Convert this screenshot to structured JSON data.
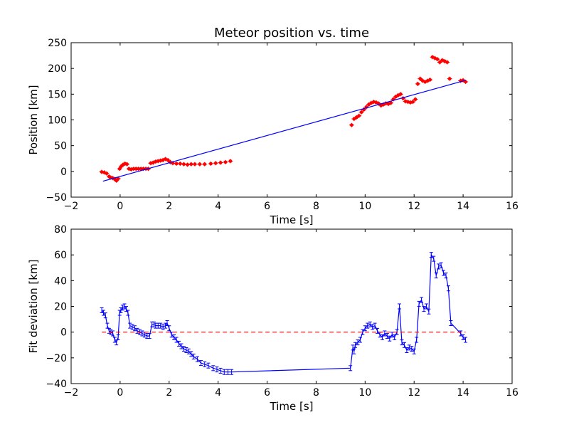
{
  "chart_data": [
    {
      "type": "scatter",
      "title": "Meteor position vs. time",
      "xlabel": "Time [s]",
      "ylabel": "Position [km]",
      "xlim": [
        -2,
        16
      ],
      "ylim": [
        -50,
        250
      ],
      "xticks": [
        "−2",
        "0",
        "2",
        "4",
        "6",
        "8",
        "10",
        "12",
        "14",
        "16"
      ],
      "yticks": [
        "−50",
        "0",
        "50",
        "100",
        "150",
        "200",
        "250"
      ],
      "grid": false,
      "series": [
        {
          "kind": "markers",
          "color": "#ff0000",
          "x": [
            -0.75,
            -0.65,
            -0.55,
            -0.45,
            -0.38,
            -0.3,
            -0.22,
            -0.15,
            -0.08,
            -0.02,
            0.05,
            0.12,
            0.2,
            0.28,
            0.36,
            0.45,
            0.55,
            0.65,
            0.75,
            0.85,
            0.95,
            1.05,
            1.15,
            1.25,
            1.35,
            1.45,
            1.55,
            1.65,
            1.75,
            1.85,
            1.95,
            2.05,
            2.15,
            2.3,
            2.45,
            2.6,
            2.75,
            2.9,
            3.05,
            3.25,
            3.45,
            3.7,
            3.9,
            4.1,
            4.3,
            4.5,
            9.45,
            9.55,
            9.65,
            9.75,
            9.85,
            9.95,
            10.05,
            10.15,
            10.25,
            10.35,
            10.45,
            10.55,
            10.65,
            10.75,
            10.85,
            10.95,
            11.05,
            11.15,
            11.25,
            11.35,
            11.45,
            11.55,
            11.65,
            11.75,
            11.85,
            11.95,
            12.05,
            12.15,
            12.25,
            12.35,
            12.45,
            12.55,
            12.65,
            12.75,
            12.85,
            12.95,
            13.05,
            13.15,
            13.25,
            13.35,
            13.45,
            13.9,
            14.0,
            14.1
          ],
          "y": [
            -1,
            -2,
            -4,
            -10,
            -12,
            -13,
            -15,
            -18,
            -14,
            5,
            10,
            13,
            15,
            14,
            5,
            4,
            5,
            5,
            5,
            5,
            5,
            5,
            5,
            16,
            17,
            19,
            20,
            21,
            22,
            24,
            22,
            18,
            16,
            15,
            15,
            14,
            13,
            14,
            14,
            14,
            14,
            15,
            16,
            17,
            18,
            20,
            90,
            102,
            105,
            108,
            115,
            120,
            125,
            130,
            133,
            135,
            134,
            132,
            128,
            130,
            132,
            131,
            133,
            140,
            145,
            148,
            150,
            142,
            136,
            135,
            134,
            135,
            140,
            170,
            180,
            176,
            174,
            176,
            178,
            222,
            220,
            218,
            212,
            216,
            214,
            212,
            180,
            176,
            177,
            174
          ]
        },
        {
          "kind": "line",
          "color": "#0000ff",
          "x": [
            -0.7,
            14.1
          ],
          "y": [
            -19,
            177
          ]
        }
      ]
    },
    {
      "type": "line",
      "title": "",
      "xlabel": "Time [s]",
      "ylabel": "Fit deviation [km]",
      "xlim": [
        -2,
        16
      ],
      "ylim": [
        -40,
        80
      ],
      "xticks": [
        "−2",
        "0",
        "2",
        "4",
        "6",
        "8",
        "10",
        "12",
        "14",
        "16"
      ],
      "yticks": [
        "−40",
        "−20",
        "0",
        "20",
        "40",
        "60",
        "80"
      ],
      "grid": false,
      "series": [
        {
          "kind": "errorline",
          "color": "#0000ff",
          "x": [
            -0.75,
            -0.68,
            -0.6,
            -0.52,
            -0.45,
            -0.38,
            -0.3,
            -0.22,
            -0.15,
            -0.08,
            -0.02,
            0.03,
            0.1,
            0.18,
            0.25,
            0.32,
            0.4,
            0.5,
            0.6,
            0.7,
            0.8,
            0.9,
            1.0,
            1.1,
            1.2,
            1.3,
            1.38,
            1.45,
            1.55,
            1.65,
            1.75,
            1.85,
            1.92,
            2.0,
            2.1,
            2.2,
            2.3,
            2.4,
            2.5,
            2.6,
            2.7,
            2.8,
            2.9,
            3.0,
            3.15,
            3.3,
            3.45,
            3.6,
            3.8,
            3.95,
            4.1,
            4.25,
            4.4,
            4.55,
            9.4,
            9.5,
            9.55,
            9.6,
            9.7,
            9.8,
            9.9,
            10.0,
            10.1,
            10.2,
            10.3,
            10.4,
            10.5,
            10.6,
            10.7,
            10.8,
            10.9,
            11.0,
            11.1,
            11.2,
            11.3,
            11.4,
            11.5,
            11.6,
            11.7,
            11.8,
            11.9,
            12.0,
            12.1,
            12.2,
            12.3,
            12.4,
            12.5,
            12.6,
            12.7,
            12.8,
            12.9,
            13.0,
            13.1,
            13.2,
            13.3,
            13.4,
            13.5,
            13.9,
            14.0,
            14.1
          ],
          "y": [
            17,
            15,
            13,
            5,
            1,
            0,
            -1,
            -6,
            -8,
            -4,
            15,
            17,
            19,
            20,
            18,
            15,
            5,
            4,
            3,
            1,
            0,
            -1,
            -2,
            -3,
            -3,
            6,
            6,
            5,
            5,
            5,
            4,
            5,
            7,
            3,
            -2,
            -4,
            -6,
            -9,
            -11,
            -13,
            -14,
            -15,
            -17,
            -19,
            -21,
            -24,
            -25,
            -26,
            -28,
            -29,
            -30,
            -31,
            -31,
            -31,
            -28,
            -12,
            -15,
            -10,
            -8,
            -6,
            0,
            3,
            5,
            6,
            4,
            5,
            1,
            -2,
            -4,
            -1,
            -3,
            -5,
            -2,
            -4,
            0,
            20,
            -8,
            -10,
            -14,
            -12,
            -13,
            -15,
            -6,
            22,
            25,
            18,
            20,
            16,
            60,
            57,
            44,
            51,
            52,
            46,
            44,
            34,
            7,
            -1,
            -4,
            -6
          ]
        },
        {
          "kind": "dashed",
          "color": "#ff0000",
          "x": [
            -0.75,
            14.1
          ],
          "y": [
            0,
            0
          ]
        }
      ]
    }
  ]
}
